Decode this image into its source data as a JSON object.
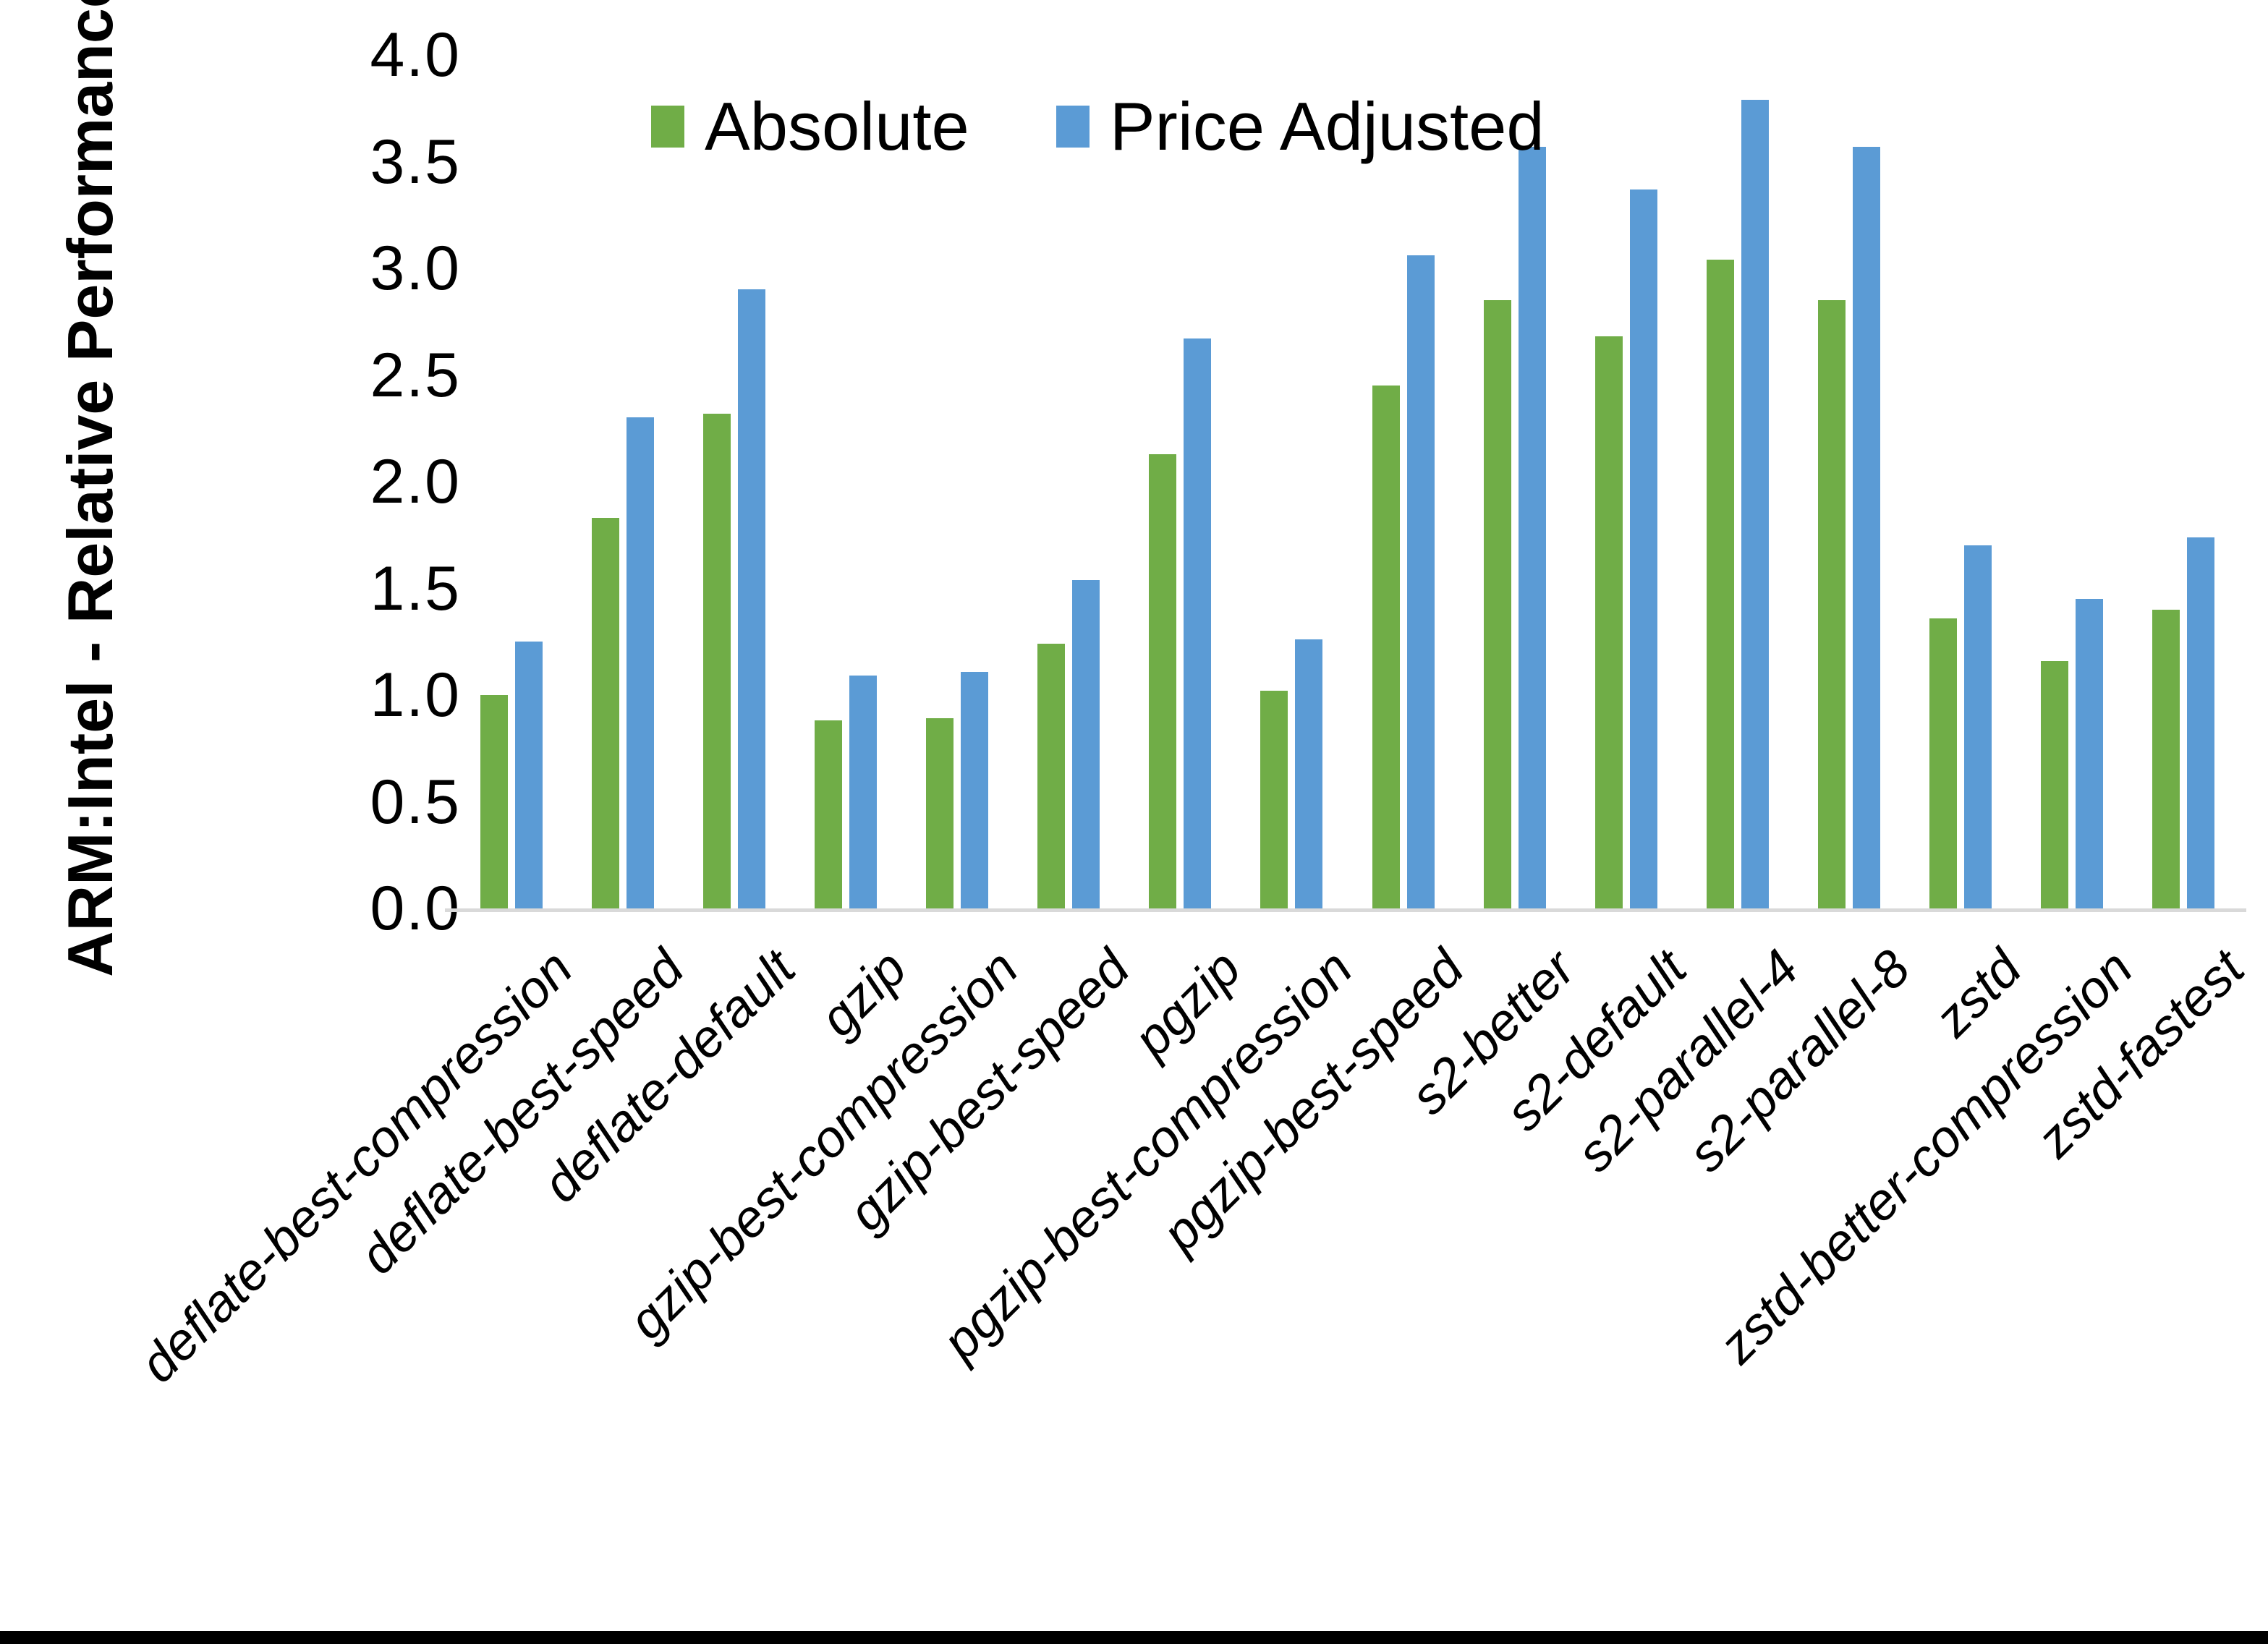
{
  "chart_data": {
    "type": "bar",
    "title": "",
    "xlabel": "",
    "ylabel": "ARM:Intel - Relative Performance",
    "ylim": [
      0.0,
      4.0
    ],
    "ytick_step": 0.5,
    "yticks": [
      "4.0",
      "3.5",
      "3.0",
      "2.5",
      "2.0",
      "1.5",
      "1.0",
      "0.5",
      "0.0"
    ],
    "grid": false,
    "legend_position": "top-center-inside",
    "categories": [
      "deflate-best-compression",
      "deflate-best-speed",
      "deflate-default",
      "gzip",
      "gzip-best-compression",
      "gzip-best-speed",
      "pgzip",
      "pgzip-best-compression",
      "pgzip-best-speed",
      "s2-better",
      "s2-default",
      "s2-parallel-4",
      "s2-parallel-8",
      "zstd",
      "zstd-better-compression",
      "zstd-fastest"
    ],
    "series": [
      {
        "name": "Absolute",
        "color": "#70AD47",
        "values": [
          1.0,
          1.83,
          2.32,
          0.88,
          0.89,
          1.24,
          2.13,
          1.02,
          2.45,
          2.85,
          2.68,
          3.04,
          2.85,
          1.36,
          1.16,
          1.4
        ]
      },
      {
        "name": "Price Adjusted",
        "color": "#5B9BD5",
        "values": [
          1.25,
          2.3,
          2.9,
          1.09,
          1.11,
          1.54,
          2.67,
          1.26,
          3.06,
          3.57,
          3.37,
          3.79,
          3.57,
          1.7,
          1.45,
          1.74
        ]
      }
    ]
  },
  "colors": {
    "background": "#FFFFFF",
    "axis_line": "#D9D9D9",
    "text": "#000000",
    "bottom_border": "#000000"
  }
}
